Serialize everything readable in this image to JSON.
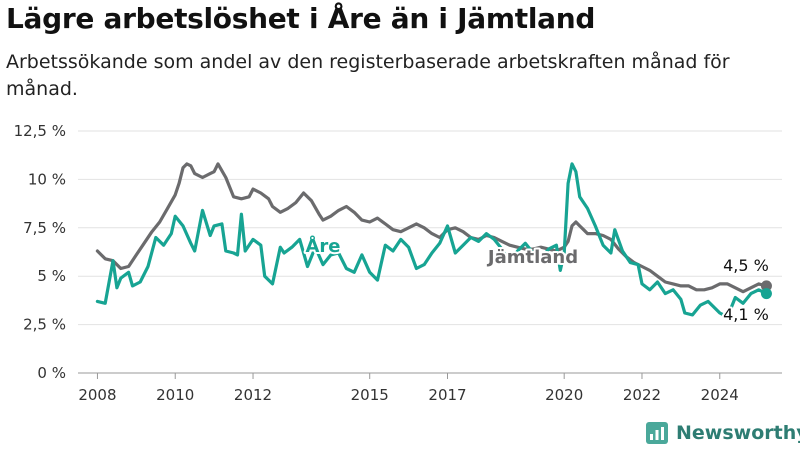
{
  "header": {
    "title": "Lägre arbetslöshet i Åre än i Jämtland",
    "subtitle": "Arbetssökande som andel av den registerbaserade arbetskraften månad för månad."
  },
  "brand": {
    "name": "Newsworthy",
    "icon": "newsworthy-logo-icon"
  },
  "colors": {
    "are": "#17a493",
    "jamtland": "#6b6b6d",
    "grid": "#e2e2e2"
  },
  "chart_data": {
    "type": "line",
    "title": "Lägre arbetslöshet i Åre än i Jämtland",
    "subtitle": "Arbetssökande som andel av den registerbaserade arbetskraften månad för månad.",
    "xlabel": "",
    "ylabel": "",
    "ylim": [
      0,
      12.5
    ],
    "xlim": [
      2007.5,
      2025.6
    ],
    "grid": "horizontal",
    "legend": "inline labels",
    "y_ticks": [
      0,
      2.5,
      5,
      7.5,
      10,
      12.5
    ],
    "y_tick_labels": [
      "0 %",
      "2,5 %",
      "5 %",
      "7,5 %",
      "10 %",
      "12,5 %"
    ],
    "x_ticks": [
      2008,
      2010,
      2012,
      2015,
      2017,
      2020,
      2022,
      2024
    ],
    "x_tick_labels": [
      "2008",
      "2010",
      "2012",
      "2015",
      "2017",
      "2020",
      "2022",
      "2024"
    ],
    "series": [
      {
        "name": "Jämtland",
        "color": "#6b6b6d",
        "end_label": "4,5 %",
        "points": [
          [
            2008.0,
            6.3
          ],
          [
            2008.2,
            5.9
          ],
          [
            2008.4,
            5.8
          ],
          [
            2008.6,
            5.4
          ],
          [
            2008.8,
            5.5
          ],
          [
            2009.0,
            6.1
          ],
          [
            2009.2,
            6.7
          ],
          [
            2009.4,
            7.3
          ],
          [
            2009.6,
            7.8
          ],
          [
            2009.8,
            8.5
          ],
          [
            2010.0,
            9.2
          ],
          [
            2010.1,
            9.8
          ],
          [
            2010.2,
            10.6
          ],
          [
            2010.3,
            10.8
          ],
          [
            2010.4,
            10.7
          ],
          [
            2010.5,
            10.3
          ],
          [
            2010.7,
            10.1
          ],
          [
            2010.9,
            10.3
          ],
          [
            2011.0,
            10.4
          ],
          [
            2011.1,
            10.8
          ],
          [
            2011.3,
            10.1
          ],
          [
            2011.5,
            9.1
          ],
          [
            2011.7,
            9.0
          ],
          [
            2011.9,
            9.1
          ],
          [
            2012.0,
            9.5
          ],
          [
            2012.2,
            9.3
          ],
          [
            2012.4,
            9.0
          ],
          [
            2012.5,
            8.6
          ],
          [
            2012.7,
            8.3
          ],
          [
            2012.9,
            8.5
          ],
          [
            2013.1,
            8.8
          ],
          [
            2013.3,
            9.3
          ],
          [
            2013.5,
            8.9
          ],
          [
            2013.7,
            8.2
          ],
          [
            2013.8,
            7.9
          ],
          [
            2014.0,
            8.1
          ],
          [
            2014.2,
            8.4
          ],
          [
            2014.4,
            8.6
          ],
          [
            2014.6,
            8.3
          ],
          [
            2014.8,
            7.9
          ],
          [
            2015.0,
            7.8
          ],
          [
            2015.2,
            8.0
          ],
          [
            2015.4,
            7.7
          ],
          [
            2015.6,
            7.4
          ],
          [
            2015.8,
            7.3
          ],
          [
            2016.0,
            7.5
          ],
          [
            2016.2,
            7.7
          ],
          [
            2016.4,
            7.5
          ],
          [
            2016.6,
            7.2
          ],
          [
            2016.8,
            7.0
          ],
          [
            2017.0,
            7.4
          ],
          [
            2017.2,
            7.5
          ],
          [
            2017.4,
            7.3
          ],
          [
            2017.6,
            7.0
          ],
          [
            2017.8,
            6.9
          ],
          [
            2018.0,
            7.1
          ],
          [
            2018.2,
            7.0
          ],
          [
            2018.4,
            6.8
          ],
          [
            2018.6,
            6.6
          ],
          [
            2018.8,
            6.5
          ],
          [
            2019.0,
            6.4
          ],
          [
            2019.2,
            6.4
          ],
          [
            2019.4,
            6.5
          ],
          [
            2019.6,
            6.4
          ],
          [
            2019.8,
            6.3
          ],
          [
            2020.0,
            6.5
          ],
          [
            2020.1,
            6.8
          ],
          [
            2020.2,
            7.6
          ],
          [
            2020.3,
            7.8
          ],
          [
            2020.4,
            7.6
          ],
          [
            2020.5,
            7.4
          ],
          [
            2020.6,
            7.2
          ],
          [
            2020.8,
            7.2
          ],
          [
            2021.0,
            7.1
          ],
          [
            2021.2,
            6.9
          ],
          [
            2021.4,
            6.4
          ],
          [
            2021.6,
            6.0
          ],
          [
            2021.8,
            5.7
          ],
          [
            2022.0,
            5.5
          ],
          [
            2022.2,
            5.3
          ],
          [
            2022.4,
            5.0
          ],
          [
            2022.6,
            4.7
          ],
          [
            2022.8,
            4.6
          ],
          [
            2023.0,
            4.5
          ],
          [
            2023.2,
            4.5
          ],
          [
            2023.4,
            4.3
          ],
          [
            2023.6,
            4.3
          ],
          [
            2023.8,
            4.4
          ],
          [
            2024.0,
            4.6
          ],
          [
            2024.2,
            4.6
          ],
          [
            2024.4,
            4.4
          ],
          [
            2024.6,
            4.2
          ],
          [
            2024.8,
            4.4
          ],
          [
            2025.0,
            4.6
          ],
          [
            2025.2,
            4.5
          ]
        ]
      },
      {
        "name": "Åre",
        "color": "#17a493",
        "end_label": "4,1 %",
        "points": [
          [
            2008.0,
            3.7
          ],
          [
            2008.2,
            3.6
          ],
          [
            2008.4,
            5.8
          ],
          [
            2008.5,
            4.4
          ],
          [
            2008.6,
            4.9
          ],
          [
            2008.8,
            5.2
          ],
          [
            2008.9,
            4.5
          ],
          [
            2009.1,
            4.7
          ],
          [
            2009.3,
            5.5
          ],
          [
            2009.5,
            7.0
          ],
          [
            2009.7,
            6.6
          ],
          [
            2009.9,
            7.2
          ],
          [
            2010.0,
            8.1
          ],
          [
            2010.2,
            7.6
          ],
          [
            2010.4,
            6.7
          ],
          [
            2010.5,
            6.3
          ],
          [
            2010.7,
            8.4
          ],
          [
            2010.9,
            7.1
          ],
          [
            2011.0,
            7.6
          ],
          [
            2011.2,
            7.7
          ],
          [
            2011.3,
            6.3
          ],
          [
            2011.5,
            6.2
          ],
          [
            2011.6,
            6.1
          ],
          [
            2011.7,
            8.2
          ],
          [
            2011.8,
            6.3
          ],
          [
            2012.0,
            6.9
          ],
          [
            2012.2,
            6.6
          ],
          [
            2012.3,
            5.0
          ],
          [
            2012.5,
            4.6
          ],
          [
            2012.7,
            6.5
          ],
          [
            2012.8,
            6.2
          ],
          [
            2013.0,
            6.5
          ],
          [
            2013.2,
            6.9
          ],
          [
            2013.4,
            5.5
          ],
          [
            2013.6,
            6.5
          ],
          [
            2013.8,
            5.6
          ],
          [
            2014.0,
            6.1
          ],
          [
            2014.2,
            6.2
          ],
          [
            2014.4,
            5.4
          ],
          [
            2014.6,
            5.2
          ],
          [
            2014.8,
            6.1
          ],
          [
            2015.0,
            5.2
          ],
          [
            2015.2,
            4.8
          ],
          [
            2015.4,
            6.6
          ],
          [
            2015.6,
            6.3
          ],
          [
            2015.8,
            6.9
          ],
          [
            2016.0,
            6.5
          ],
          [
            2016.2,
            5.4
          ],
          [
            2016.4,
            5.6
          ],
          [
            2016.6,
            6.2
          ],
          [
            2016.8,
            6.7
          ],
          [
            2017.0,
            7.6
          ],
          [
            2017.2,
            6.2
          ],
          [
            2017.4,
            6.6
          ],
          [
            2017.6,
            7.0
          ],
          [
            2017.8,
            6.8
          ],
          [
            2018.0,
            7.2
          ],
          [
            2018.2,
            6.9
          ],
          [
            2018.4,
            6.4
          ],
          [
            2018.6,
            5.7
          ],
          [
            2018.8,
            6.3
          ],
          [
            2019.0,
            6.7
          ],
          [
            2019.2,
            6.2
          ],
          [
            2019.4,
            5.9
          ],
          [
            2019.6,
            6.4
          ],
          [
            2019.8,
            6.6
          ],
          [
            2019.9,
            5.3
          ],
          [
            2020.0,
            6.2
          ],
          [
            2020.1,
            9.8
          ],
          [
            2020.2,
            10.8
          ],
          [
            2020.3,
            10.4
          ],
          [
            2020.4,
            9.1
          ],
          [
            2020.6,
            8.5
          ],
          [
            2020.8,
            7.6
          ],
          [
            2021.0,
            6.6
          ],
          [
            2021.2,
            6.2
          ],
          [
            2021.3,
            7.4
          ],
          [
            2021.5,
            6.3
          ],
          [
            2021.7,
            5.7
          ],
          [
            2021.9,
            5.6
          ],
          [
            2022.0,
            4.6
          ],
          [
            2022.2,
            4.3
          ],
          [
            2022.4,
            4.7
          ],
          [
            2022.6,
            4.1
          ],
          [
            2022.8,
            4.3
          ],
          [
            2023.0,
            3.8
          ],
          [
            2023.1,
            3.1
          ],
          [
            2023.3,
            3.0
          ],
          [
            2023.5,
            3.5
          ],
          [
            2023.7,
            3.7
          ],
          [
            2023.9,
            3.3
          ],
          [
            2024.0,
            3.1
          ],
          [
            2024.2,
            2.9
          ],
          [
            2024.4,
            3.9
          ],
          [
            2024.6,
            3.6
          ],
          [
            2024.8,
            4.1
          ],
          [
            2025.0,
            4.3
          ],
          [
            2025.2,
            4.1
          ]
        ]
      }
    ],
    "annotations": [
      {
        "text": "Åre",
        "series": "Åre"
      },
      {
        "text": "Jämtland",
        "series": "Jämtland"
      },
      {
        "text": "4,5 %",
        "series": "Jämtland"
      },
      {
        "text": "4,1 %",
        "series": "Åre"
      }
    ]
  }
}
